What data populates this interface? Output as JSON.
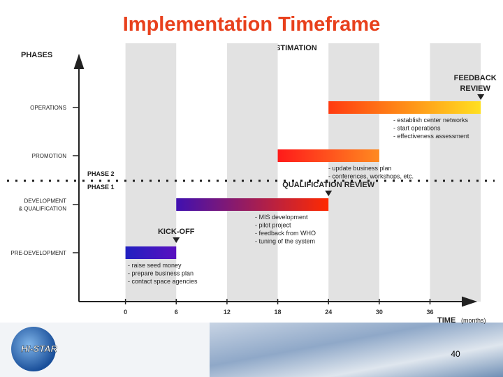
{
  "chart_data": {
    "type": "gantt",
    "title": "Implementation Timeframe",
    "y_axis_label": "PHASES",
    "x_axis_label": "TIME",
    "x_axis_unit": "(months)",
    "top_annotation": "PLANNING ESTIMATION",
    "categories": [
      [
        "OPERATIONS"
      ],
      [
        "PROMOTION"
      ],
      [
        "DEVELOPMENT",
        "& QUALIFICATION"
      ],
      [
        "PRE-DEVELOPMENT"
      ]
    ],
    "start": [
      24,
      18,
      6,
      0
    ],
    "end": [
      42,
      30,
      24,
      6
    ],
    "colors": [
      [
        "#ff3a10",
        "#ffe020"
      ],
      [
        "#ff1a1a",
        "#ff8a20"
      ],
      [
        "#4010b0",
        "#ff2a00"
      ],
      [
        "#2020c0",
        "#5a10c0"
      ]
    ],
    "notes": [
      [
        "- establish center networks",
        "- start operations",
        "- effectiveness assessment"
      ],
      [
        "- update business plan",
        "- conferences, workshops, etc."
      ],
      [
        "- MIS development",
        "- pilot project",
        "- feedback from WHO",
        "- tuning of the system"
      ],
      [
        "- raise seed money",
        "- prepare business plan",
        "- contact space agencies"
      ]
    ],
    "milestones": [
      {
        "label": [
          "KICK-OFF"
        ],
        "x": 6
      },
      {
        "label": [
          "QUALIFICATION REVIEW"
        ],
        "x": 24
      },
      {
        "label": [
          "FEEDBACK",
          "REVIEW"
        ],
        "x": 42
      }
    ],
    "phase_labels": [
      "PHASE 2",
      "PHASE 1"
    ],
    "xlim": [
      -5.5,
      40.5
    ],
    "xticks": [
      0,
      6,
      12,
      18,
      24,
      30,
      36
    ],
    "footer": {
      "logo": "HI-STAR",
      "page_number": "40"
    }
  }
}
